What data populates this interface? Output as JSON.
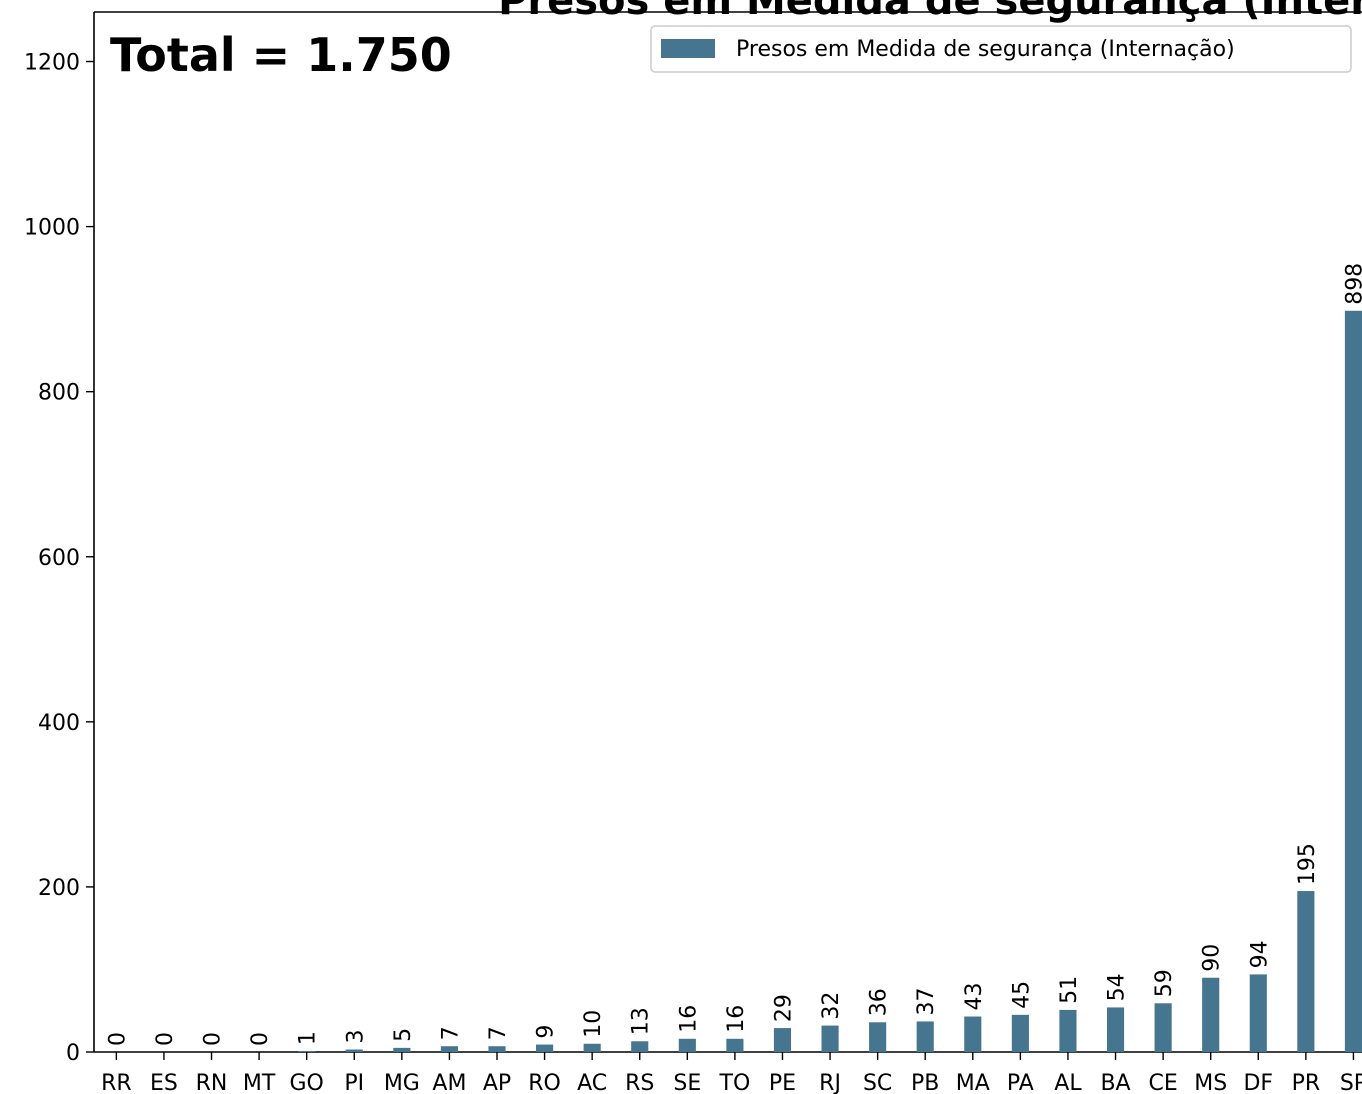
{
  "chart_data": {
    "type": "bar",
    "title": "Presos em Medida de segurança (Internação)",
    "annotation": "Total = 1.750",
    "categories": [
      "RR",
      "ES",
      "RN",
      "MT",
      "GO",
      "PI",
      "MG",
      "AM",
      "AP",
      "RO",
      "AC",
      "RS",
      "SE",
      "TO",
      "PE",
      "RJ",
      "SC",
      "PB",
      "MA",
      "PA",
      "AL",
      "BA",
      "CE",
      "MS",
      "DF",
      "PR",
      "SP"
    ],
    "series": [
      {
        "name": "Presos em Medida de segurança (Internação)",
        "values": [
          0,
          0,
          0,
          0,
          1,
          3,
          5,
          7,
          7,
          9,
          10,
          13,
          16,
          16,
          29,
          32,
          36,
          37,
          43,
          45,
          51,
          54,
          59,
          90,
          94,
          195,
          898
        ],
        "color": "#46758f"
      }
    ],
    "ylim": [
      0,
      1260
    ],
    "yticks": [
      0,
      200,
      400,
      600,
      800,
      1000,
      1200
    ],
    "legend_position": "top-right",
    "grid": false,
    "xlabel": "",
    "ylabel": ""
  }
}
